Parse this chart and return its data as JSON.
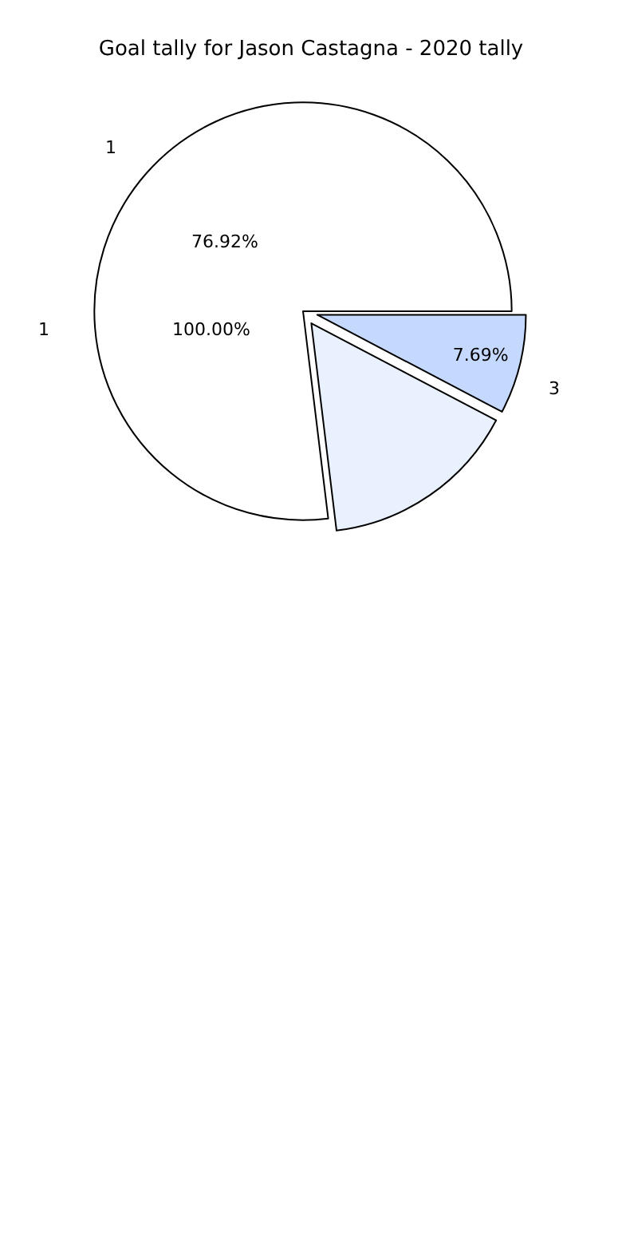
{
  "chart_data": {
    "type": "pie",
    "title": "Goal tally for Jason Castagna - 2020 tally",
    "categories": [
      "1",
      null,
      "3"
    ],
    "values": [
      76.92,
      15.38,
      7.69
    ],
    "colors": [
      "#ffffff",
      "#eaf1fe",
      "#c5d9fe"
    ],
    "value_labels": [
      "76.92%",
      null,
      "7.69%"
    ],
    "annotations": [
      "1",
      "100.00%"
    ],
    "legend": false
  }
}
